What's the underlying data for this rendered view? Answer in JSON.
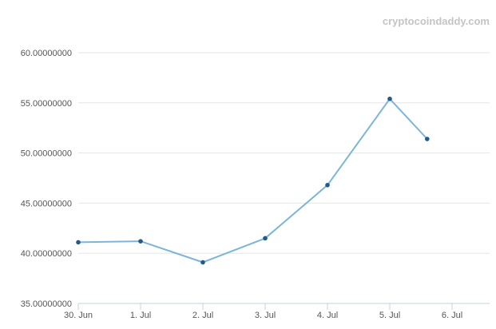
{
  "credit": "cryptocoindaddy.com",
  "chart_data": {
    "type": "line",
    "title": "",
    "xlabel": "",
    "ylabel": "",
    "categories": [
      "30. Jun",
      "1. Jul",
      "2. Jul",
      "3. Jul",
      "4. Jul",
      "5. Jul",
      "6. Jul"
    ],
    "x_tick_labels": [
      "30. Jun",
      "1. Jul",
      "2. Jul",
      "3. Jul",
      "4. Jul",
      "5. Jul",
      "6. Jul"
    ],
    "y_tick_labels": [
      "35.00000000",
      "40.00000000",
      "45.00000000",
      "50.00000000",
      "55.00000000",
      "60.00000000"
    ],
    "ylim": [
      35,
      60
    ],
    "grid": true,
    "series": [
      {
        "x": [
          0,
          1,
          2,
          3,
          4,
          5,
          5.6
        ],
        "values": [
          41.1,
          41.2,
          39.1,
          41.5,
          46.8,
          55.4,
          51.4
        ]
      }
    ],
    "line_color": "#7cb5d8",
    "marker_color": "#1f5b8b"
  }
}
